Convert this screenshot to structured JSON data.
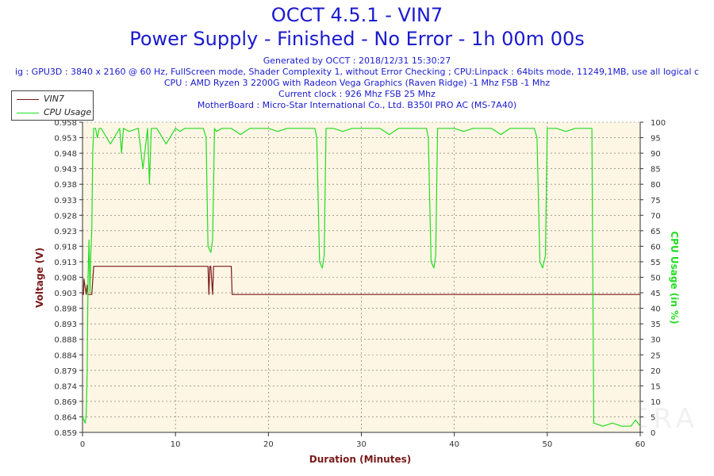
{
  "header": {
    "title": "OCCT 4.5.1 - VIN7",
    "subtitle": "Power Supply - Finished - No Error - 1h 00m 00s",
    "info_lines": [
      "Generated by OCCT : 2018/12/31 15:30:27",
      "ig : GPU3D : 3840 x 2160 @ 60 Hz, FullScreen mode, Shader Complexity 1, without Error Checking ; CPU:Linpack : 64bits mode, 11249,1MB, use all logical c",
      "CPU : AMD Ryzen 3 2200G with Radeon Vega Graphics (Raven Ridge) -1 Mhz FSB -1 Mhz",
      "Current clock : 926 Mhz FSB 25 Mhz",
      "MotherBoard : Micro-Star International Co., Ltd. B350I PRO AC (MS-7A40)"
    ]
  },
  "watermark": "HARDWAREZERA",
  "colors": {
    "voltage": "#7a1a1a",
    "cpu": "#22dd22",
    "plot_bg": "#fdf6e4",
    "grid": "#6a6a6a",
    "title": "#1a1acf"
  },
  "chart_data": {
    "type": "line",
    "xlabel": "Duration (Minutes)",
    "ylabel": "Voltage (V)",
    "y2label": "CPU Usage (in %)",
    "xlim": [
      0,
      60
    ],
    "ylim": [
      0.859,
      0.958
    ],
    "y2lim": [
      0,
      100
    ],
    "x_ticks": [
      0,
      10,
      20,
      30,
      40,
      50,
      60
    ],
    "y_ticks": [
      "0.859",
      "0.864",
      "0.869",
      "0.874",
      "0.879",
      "0.884",
      "0.888",
      "0.893",
      "0.898",
      "0.903",
      "0.908",
      "0.913",
      "0.918",
      "0.923",
      "0.928",
      "0.933",
      "0.938",
      "0.943",
      "0.948",
      "0.953",
      "0.958"
    ],
    "y2_ticks": [
      0,
      5,
      10,
      15,
      20,
      25,
      30,
      35,
      40,
      45,
      50,
      55,
      60,
      65,
      70,
      75,
      80,
      85,
      90,
      95,
      100
    ],
    "grid": true,
    "legend": "top-left",
    "series": [
      {
        "name": "VIN7",
        "axis": "left",
        "color": "#7a1a1a",
        "x": [
          0,
          0.1,
          0.15,
          0.3,
          0.4,
          0.5,
          0.6,
          0.8,
          1.0,
          1.2,
          13.5,
          13.6,
          13.7,
          13.8,
          14.0,
          14.1,
          14.2,
          16.0,
          16.1,
          60
        ],
        "y": [
          0.903,
          0.903,
          0.908,
          0.905,
          0.903,
          0.906,
          0.903,
          0.903,
          0.903,
          0.912,
          0.912,
          0.903,
          0.912,
          0.912,
          0.903,
          0.912,
          0.912,
          0.912,
          0.903,
          0.903
        ]
      },
      {
        "name": "CPU Usage",
        "axis": "right",
        "color": "#22dd22",
        "x": [
          0,
          0.3,
          0.4,
          0.5,
          0.6,
          0.7,
          0.8,
          0.9,
          1.0,
          1.1,
          1.2,
          1.4,
          1.6,
          1.8,
          2,
          3,
          4,
          4.2,
          4.4,
          5,
          6,
          6.5,
          7,
          7.2,
          7.4,
          8,
          9,
          10,
          10.5,
          11,
          12,
          13,
          13.3,
          13.5,
          13.8,
          14,
          14.2,
          14.4,
          15,
          16,
          17,
          18,
          19,
          20,
          21,
          22,
          23,
          24,
          25,
          25.2,
          25.5,
          25.8,
          26,
          26.2,
          27,
          28,
          29,
          30,
          31,
          32,
          33,
          34,
          35,
          36,
          37,
          37.2,
          37.5,
          37.8,
          38,
          38.2,
          39,
          40,
          41,
          42,
          43,
          44,
          45,
          46,
          47,
          48,
          48.6,
          48.9,
          49.2,
          49.5,
          49.8,
          50,
          51,
          52,
          53,
          54,
          54.5,
          54.8,
          55,
          56,
          57,
          58,
          59,
          59.5,
          60
        ],
        "y": [
          5,
          3,
          6,
          20,
          50,
          62,
          45,
          58,
          65,
          90,
          98,
          98,
          95,
          98,
          98,
          93,
          98,
          90,
          98,
          97,
          98,
          85,
          98,
          80,
          98,
          98,
          93,
          98,
          97,
          98,
          98,
          98,
          95,
          60,
          58,
          62,
          98,
          97,
          98,
          98,
          96,
          98,
          98,
          98,
          97,
          98,
          98,
          98,
          98,
          95,
          55,
          53,
          57,
          98,
          98,
          97,
          98,
          98,
          98,
          98,
          96,
          98,
          98,
          98,
          98,
          95,
          55,
          53,
          57,
          98,
          98,
          98,
          97,
          98,
          98,
          98,
          96,
          98,
          98,
          98,
          98,
          95,
          55,
          53,
          57,
          98,
          98,
          97,
          98,
          98,
          98,
          98,
          3,
          2,
          3,
          2,
          2,
          4,
          2
        ]
      }
    ]
  },
  "legend": {
    "items": [
      {
        "label": "VIN7",
        "color": "#7a1a1a"
      },
      {
        "label": "CPU Usage",
        "color": "#22dd22"
      }
    ]
  }
}
